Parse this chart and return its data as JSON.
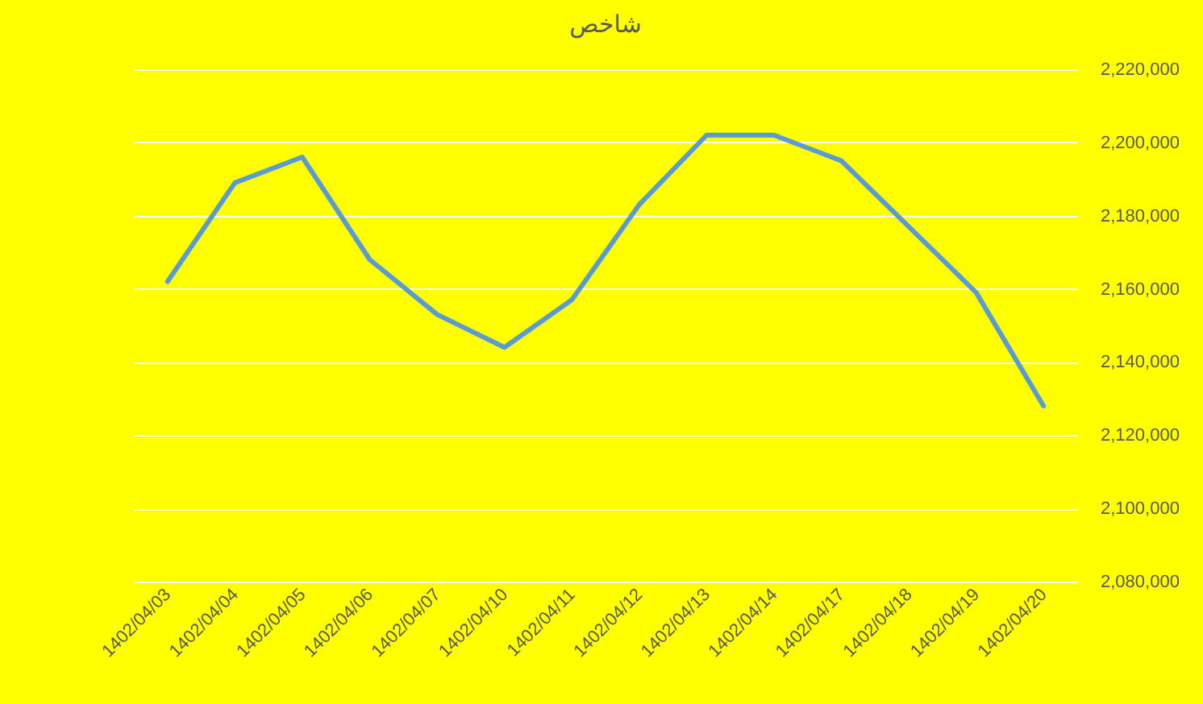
{
  "chart_data": {
    "type": "line",
    "title": "شاخص",
    "categories": [
      "1402/04/03",
      "1402/04/04",
      "1402/04/05",
      "1402/04/06",
      "1402/04/07",
      "1402/04/10",
      "1402/04/11",
      "1402/04/12",
      "1402/04/13",
      "1402/04/14",
      "1402/04/17",
      "1402/04/18",
      "1402/04/19",
      "1402/04/20"
    ],
    "values": [
      2162000,
      2189000,
      2196000,
      2168000,
      2153000,
      2144000,
      2157000,
      2183000,
      2202000,
      2202000,
      2195000,
      2177000,
      2159000,
      2128000
    ],
    "color": "#5b9bd5",
    "ylim": [
      2080000,
      2220000
    ],
    "yticks": [
      {
        "value": 2080000,
        "label": "2,080,000"
      },
      {
        "value": 2100000,
        "label": "2,100,000"
      },
      {
        "value": 2120000,
        "label": "2,120,000"
      },
      {
        "value": 2140000,
        "label": "2,140,000"
      },
      {
        "value": 2160000,
        "label": "2,160,000"
      },
      {
        "value": 2180000,
        "label": "2,180,000"
      },
      {
        "value": 2200000,
        "label": "2,200,000"
      },
      {
        "value": 2220000,
        "label": "2,220,000"
      }
    ],
    "grid": "y"
  }
}
